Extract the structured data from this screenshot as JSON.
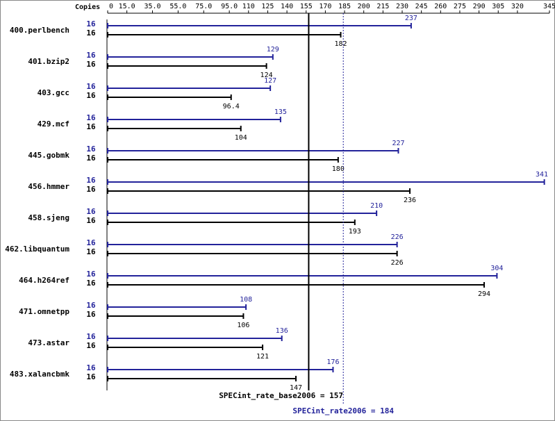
{
  "chart_data": {
    "type": "hbar-pairs",
    "axis_label": "Copies",
    "categories": [
      "400.perlbench",
      "401.bzip2",
      "403.gcc",
      "429.mcf",
      "445.gobmk",
      "456.hmmer",
      "458.sjeng",
      "462.libquantum",
      "464.h264ref",
      "471.omnetpp",
      "473.astar",
      "483.xalancbmk"
    ],
    "series": [
      {
        "color": "#22229a",
        "copies": [
          16,
          16,
          16,
          16,
          16,
          16,
          16,
          16,
          16,
          16,
          16,
          16
        ],
        "values": [
          237,
          129,
          127,
          135,
          227,
          341,
          210,
          226,
          304,
          108,
          136,
          176
        ]
      },
      {
        "color": "#000000",
        "copies": [
          16,
          16,
          16,
          16,
          16,
          16,
          16,
          16,
          16,
          16,
          16,
          16
        ],
        "values": [
          182,
          124,
          96.4,
          104,
          180,
          236,
          193,
          226,
          294,
          106,
          121,
          147
        ]
      }
    ],
    "xlim": [
      0,
      345
    ],
    "xticks": [
      0,
      {
        "value": 15,
        "label": "15.0"
      },
      {
        "value": 35,
        "label": "35.0"
      },
      {
        "value": 55,
        "label": "55.0"
      },
      {
        "value": 75,
        "label": "75.0"
      },
      {
        "value": 95,
        "label": "95.0"
      },
      110,
      125,
      140,
      155,
      170,
      185,
      200,
      215,
      230,
      245,
      260,
      275,
      290,
      305,
      320,
      345
    ],
    "reference_lines": [
      {
        "value": 157,
        "label": "SPECint_rate_base2006 = 157",
        "color": "#000000",
        "dashed": false
      },
      {
        "value": 184,
        "label": "SPECint_rate2006 = 184",
        "color": "#22229a",
        "dashed": true
      }
    ]
  }
}
